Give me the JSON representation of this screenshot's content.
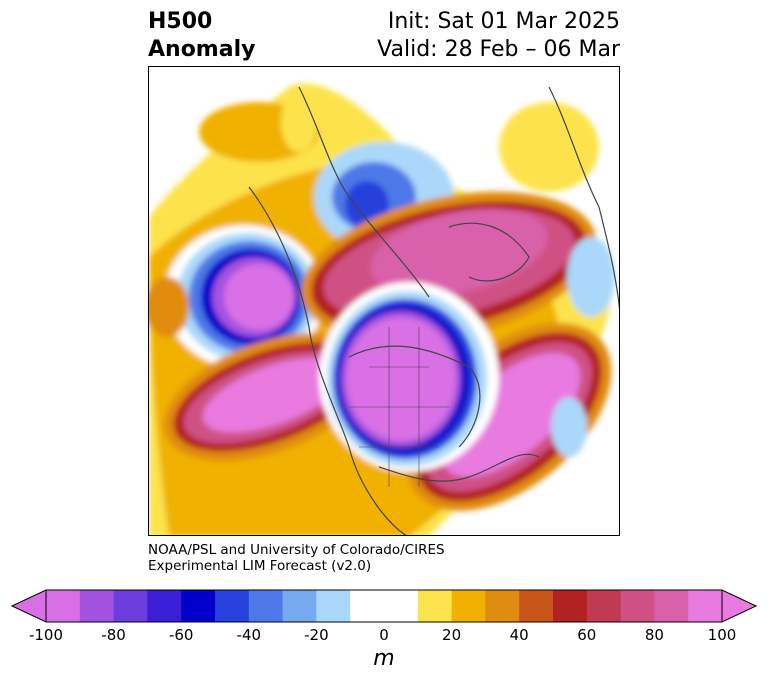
{
  "title": {
    "left": [
      "H500",
      "Anomaly"
    ],
    "right": [
      "Init: Sat 01 Mar 2025",
      "Valid: 28 Feb – 06 Mar"
    ]
  },
  "credit": [
    "NOAA/PSL and University of Colorado/CIRES",
    "Experimental LIM Forecast (v2.0)"
  ],
  "colorbar": {
    "colors": [
      "#d96fe6",
      "#a352e0",
      "#6a3ddc",
      "#3a1fd6",
      "#0000c8",
      "#2741dc",
      "#4e78e8",
      "#76aaf0",
      "#aad8fa",
      "#ffffff",
      "#ffffff",
      "#fde34c",
      "#f0b100",
      "#e08c10",
      "#c8561a",
      "#b22222",
      "#c03a52",
      "#cf5184",
      "#d961aa",
      "#e87ae0"
    ],
    "ticks": [
      "-100",
      "-80",
      "-60",
      "-40",
      "-20",
      "0",
      "20",
      "40",
      "60",
      "80",
      "100"
    ],
    "unit": "m"
  }
}
